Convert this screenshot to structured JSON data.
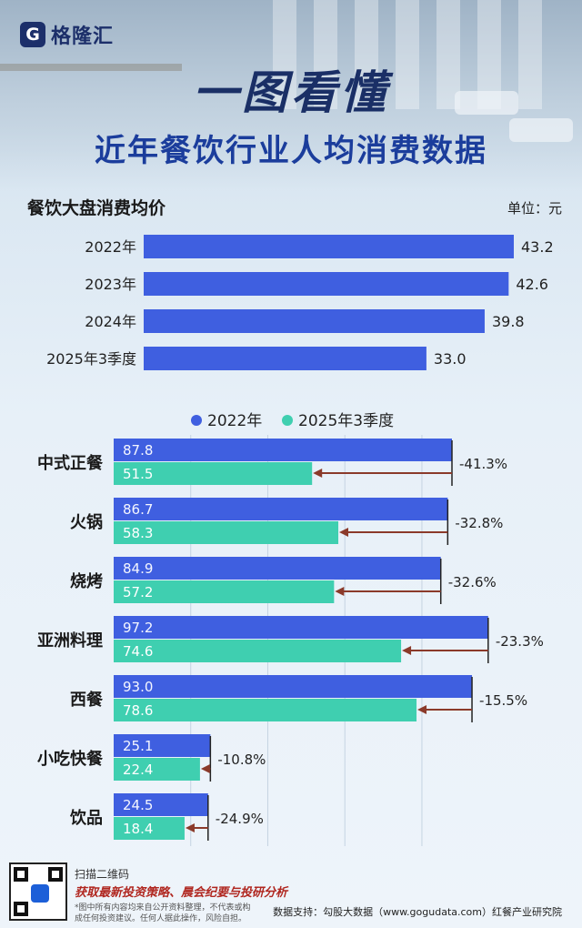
{
  "brand": {
    "name": "格隆汇"
  },
  "header": {
    "title": "一图看懂",
    "subtitle": "近年餐饮行业人均消费数据"
  },
  "section1": {
    "title": "餐饮大盘消费均价",
    "unit": "单位：元"
  },
  "colors": {
    "blue": "#3f5fe0",
    "teal": "#3fcfb0",
    "arrow": "#8b3a2a",
    "title_dark": "#1a2f66",
    "title_blue": "#1b3d9c"
  },
  "chart_data": [
    {
      "type": "bar",
      "orientation": "horizontal",
      "title": "餐饮大盘消费均价",
      "categories": [
        "2022年",
        "2023年",
        "2024年",
        "2025年3季度"
      ],
      "values": [
        43.2,
        42.6,
        39.8,
        33.0
      ],
      "value_labels": [
        "43.2",
        "42.6",
        "39.8",
        "33.0"
      ],
      "xlim": [
        0,
        44
      ]
    },
    {
      "type": "bar",
      "orientation": "horizontal",
      "categories": [
        "中式正餐",
        "火锅",
        "烧烤",
        "亚洲料理",
        "西餐",
        "小吃快餐",
        "饮品"
      ],
      "series": [
        {
          "name": "2022年",
          "values": [
            87.8,
            86.7,
            84.9,
            97.2,
            93.0,
            25.1,
            24.5
          ],
          "labels": [
            "87.8",
            "86.7",
            "84.9",
            "97.2",
            "93.0",
            "25.1",
            "24.5"
          ]
        },
        {
          "name": "2025年3季度",
          "values": [
            51.5,
            58.3,
            57.2,
            74.6,
            78.6,
            22.4,
            18.4
          ],
          "labels": [
            "51.5",
            "58.3",
            "57.2",
            "74.6",
            "78.6",
            "22.4",
            "18.4"
          ]
        }
      ],
      "changes": [
        "-41.3%",
        "-32.8%",
        "-32.6%",
        "-23.3%",
        "-15.5%",
        "-10.8%",
        "-24.9%"
      ],
      "legend": "top",
      "xlim": [
        0,
        100
      ]
    }
  ],
  "footer": {
    "scan": "扫描二维码",
    "slogan": "获取最新投资策略、晨会纪要与投研分析",
    "disclaimer": "*图中所有内容均来自公开资料整理，不代表或构成任何投资建议。任何人据此操作，风险自担。",
    "source": "数据支持：勾股大数据（www.gogudata.com）红餐产业研究院"
  }
}
